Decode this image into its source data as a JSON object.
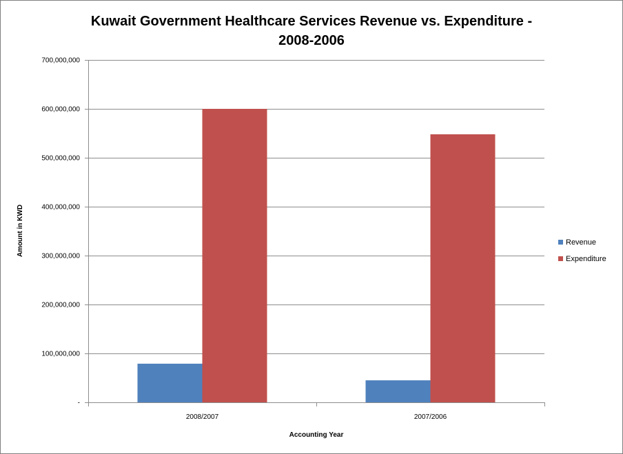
{
  "chart_data": {
    "type": "bar",
    "title_lines": [
      "Kuwait Government Healthcare Services Revenue vs. Expenditure -",
      "2008-2006"
    ],
    "xlabel": "Accounting Year",
    "ylabel": "Amount in KWD",
    "categories": [
      "2008/2007",
      "2007/2006"
    ],
    "series": [
      {
        "name": "Revenue",
        "color": "#4f81bd",
        "values": [
          79000000,
          45000000
        ]
      },
      {
        "name": "Expenditure",
        "color": "#c0504d",
        "values": [
          600000000,
          548000000
        ]
      }
    ],
    "ylim": [
      0,
      700000000
    ],
    "yticks": [
      {
        "value": 0,
        "label": "-"
      },
      {
        "value": 100000000,
        "label": "100,000,000"
      },
      {
        "value": 200000000,
        "label": "200,000,000"
      },
      {
        "value": 300000000,
        "label": "300,000,000"
      },
      {
        "value": 400000000,
        "label": "400,000,000"
      },
      {
        "value": 500000000,
        "label": "500,000,000"
      },
      {
        "value": 600000000,
        "label": "600,000,000"
      },
      {
        "value": 700000000,
        "label": "700,000,000"
      }
    ],
    "grid": true,
    "legend_position": "right"
  }
}
